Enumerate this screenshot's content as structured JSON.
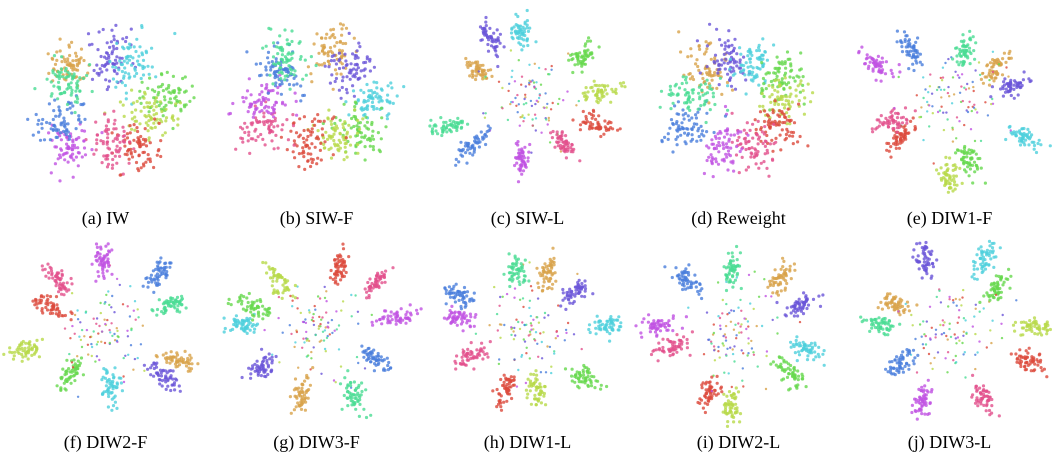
{
  "figure": {
    "panels": [
      {
        "caption": "(a) IW"
      },
      {
        "caption": "(b) SIW-F"
      },
      {
        "caption": "(c) SIW-L"
      },
      {
        "caption": "(d) Reweight"
      },
      {
        "caption": "(e) DIW1-F"
      },
      {
        "caption": "(f) DIW2-F"
      },
      {
        "caption": "(g) DIW3-F"
      },
      {
        "caption": "(h) DIW1-L"
      },
      {
        "caption": "(i) DIW2-L"
      },
      {
        "caption": "(j) DIW3-L"
      }
    ]
  }
}
